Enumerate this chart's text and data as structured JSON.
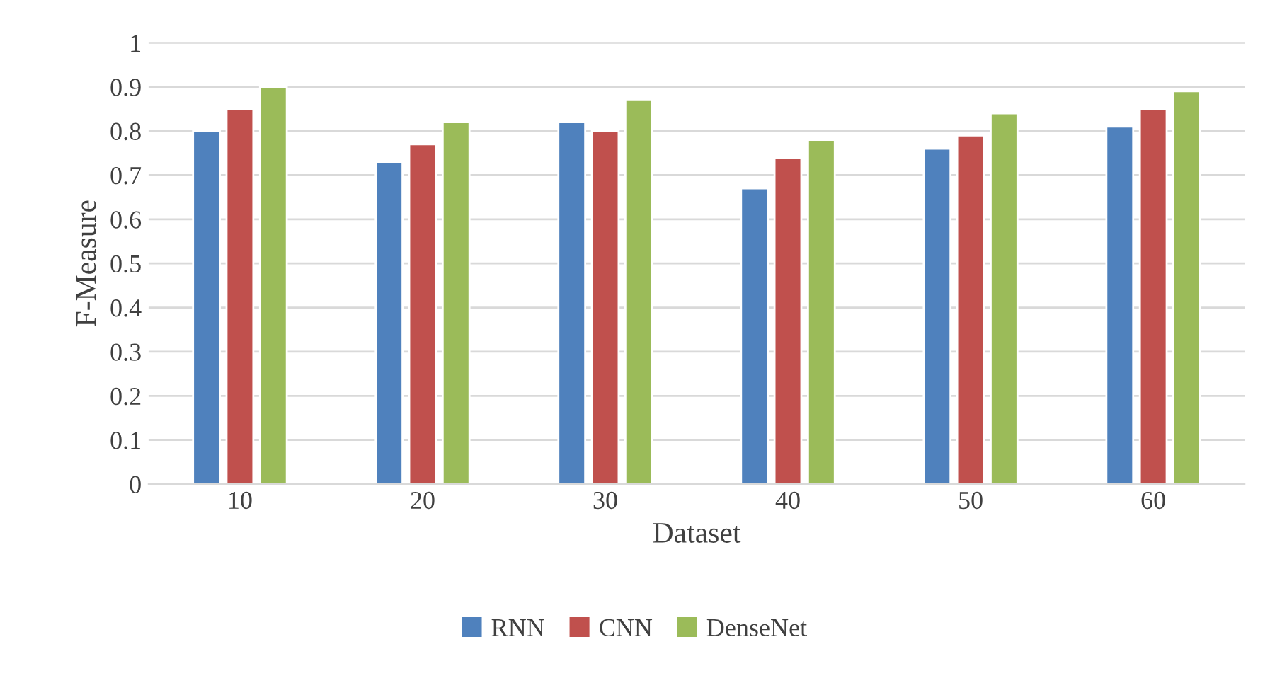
{
  "chart_data": {
    "type": "bar",
    "xlabel": "Dataset",
    "ylabel": "F-Measure",
    "categories": [
      "10",
      "20",
      "30",
      "40",
      "50",
      "60"
    ],
    "series": [
      {
        "name": "RNN",
        "color": "#4f81bd",
        "values": [
          0.8,
          0.73,
          0.82,
          0.67,
          0.76,
          0.81
        ]
      },
      {
        "name": "CNN",
        "color": "#c0504d",
        "values": [
          0.85,
          0.77,
          0.8,
          0.74,
          0.79,
          0.85
        ]
      },
      {
        "name": "DenseNet",
        "color": "#9bbb59",
        "values": [
          0.9,
          0.82,
          0.87,
          0.78,
          0.84,
          0.89
        ]
      }
    ],
    "ylim": [
      0,
      1
    ],
    "yticks": [
      0,
      0.1,
      0.2,
      0.3,
      0.4,
      0.5,
      0.6,
      0.7,
      0.8,
      0.9,
      1
    ],
    "grid": "y",
    "legend": "bottom"
  }
}
